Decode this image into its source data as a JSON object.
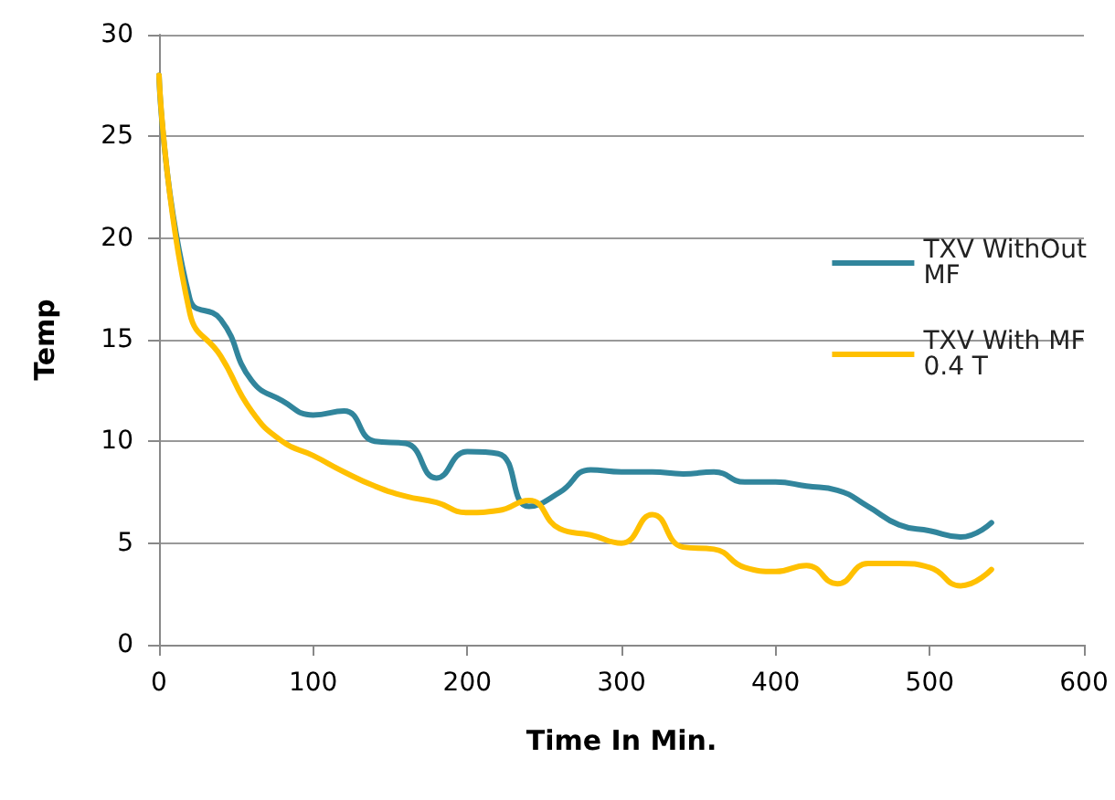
{
  "chart_data": {
    "type": "line",
    "xlabel": "Time In Min.",
    "ylabel": "Temp",
    "x": [
      0,
      20,
      40,
      60,
      80,
      100,
      120,
      140,
      160,
      180,
      200,
      220,
      240,
      260,
      280,
      300,
      320,
      340,
      360,
      380,
      400,
      420,
      440,
      460,
      480,
      500,
      520,
      540
    ],
    "series": [
      {
        "name": "TXV WithOut MF",
        "color": "#31859c",
        "values": [
          28,
          17,
          16,
          13,
          12,
          11.3,
          11.5,
          10,
          9.9,
          8.2,
          9.5,
          9.4,
          6.8,
          7.5,
          8.6,
          8.5,
          8.5,
          8.4,
          8.5,
          8,
          8,
          7.8,
          7.6,
          6.8,
          5.9,
          5.6,
          5.3,
          6
        ]
      },
      {
        "name": "TXV With MF 0.4 T",
        "color": "#ffc000",
        "values": [
          28,
          16.3,
          14.2,
          11.5,
          10,
          9.3,
          8.5,
          7.8,
          7.3,
          7,
          6.5,
          6.6,
          7.1,
          5.7,
          5.4,
          5,
          6.4,
          4.8,
          4.7,
          3.8,
          3.6,
          3.9,
          3,
          4,
          4,
          3.8,
          2.9,
          3.7
        ]
      }
    ],
    "xlim": [
      0,
      600
    ],
    "xticks": [
      0,
      100,
      200,
      300,
      400,
      500,
      600
    ],
    "ylim": [
      0,
      30
    ],
    "yticks": [
      0,
      5,
      10,
      15,
      20,
      25,
      30
    ],
    "grid": "y",
    "legend": "right",
    "marker": "none",
    "line_style": "solid"
  }
}
